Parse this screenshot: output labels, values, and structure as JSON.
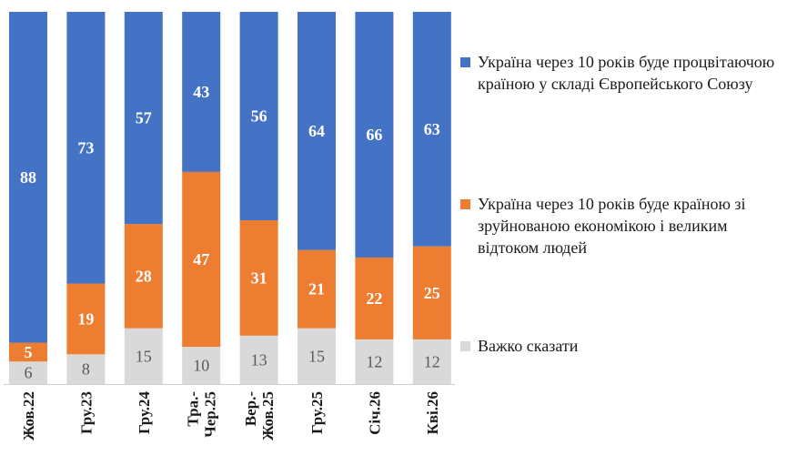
{
  "colors": {
    "blue": "#4472C4",
    "orange": "#ED7D31",
    "gray": "#D9D9D9"
  },
  "legend": {
    "items": [
      {
        "label": "Україна через 10 років буде процвітаючою країною у складі Європейського Союзу",
        "color": "#4472C4"
      },
      {
        "label": "Україна через 10 років буде країною зі зруйнованою економікою і великим відтоком людей",
        "color": "#ED7D31"
      },
      {
        "label": "Важко сказати",
        "color": "#D9D9D9"
      }
    ]
  },
  "chart_data": {
    "type": "bar",
    "stacked": true,
    "percent": true,
    "categories": [
      "Жов.22",
      "Гру.23",
      "Гру.24",
      "Тра.-Чер.25",
      "Вер.-Жов.25",
      "Гру.25",
      "Січ.26",
      "Кві.26"
    ],
    "category_lines": [
      [
        "Жов.22"
      ],
      [
        "Гру.23"
      ],
      [
        "Гру.24"
      ],
      [
        "Тра.-",
        "Чер.25"
      ],
      [
        "Вер.-",
        "Жов.25"
      ],
      [
        "Гру.25"
      ],
      [
        "Січ.26"
      ],
      [
        "Кві.26"
      ]
    ],
    "series": [
      {
        "name": "Важко сказати",
        "color": "#D9D9D9",
        "label_color": "#595959",
        "label_bold": false,
        "values": [
          6,
          8,
          15,
          10,
          13,
          15,
          12,
          12
        ]
      },
      {
        "name": "Україна через 10 років буде країною зі зруйнованою економікою і великим відтоком людей",
        "color": "#ED7D31",
        "label_color": "#ffffff",
        "label_bold": true,
        "values": [
          5,
          19,
          28,
          47,
          31,
          21,
          22,
          25
        ]
      },
      {
        "name": "Україна через 10 років буде процвітаючою країною у складі Європейського Союзу",
        "color": "#4472C4",
        "label_color": "#ffffff",
        "label_bold": true,
        "values": [
          88,
          73,
          57,
          43,
          56,
          64,
          66,
          63
        ]
      }
    ],
    "legend_position": "right",
    "gridlines": false
  }
}
